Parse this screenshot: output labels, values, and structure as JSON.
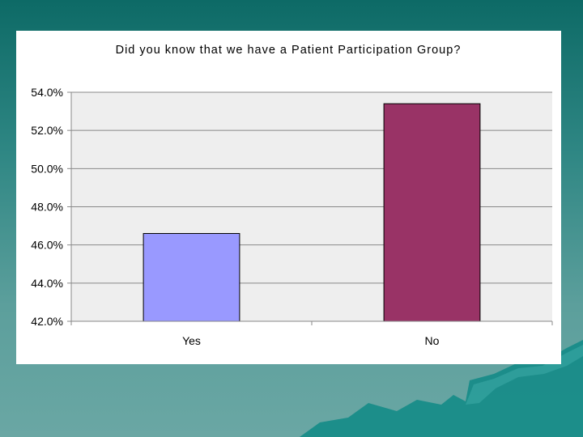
{
  "chart_data": {
    "type": "bar",
    "title": "Did you know that we have a Patient Participation Group?",
    "categories": [
      "Yes",
      "No"
    ],
    "values": [
      46.6,
      53.4
    ],
    "ylim": [
      42.0,
      54.0
    ],
    "yticks": [
      42.0,
      44.0,
      46.0,
      48.0,
      50.0,
      52.0,
      54.0
    ],
    "ytick_format": "0.0%",
    "bar_colors": [
      "#9999ff",
      "#993366"
    ],
    "grid": true,
    "legend": "none",
    "plot_background": "#eeeeee",
    "xlabel": "",
    "ylabel": ""
  },
  "colors": {
    "slide_background": "#2f8784",
    "wave_decoration": "#0f8a86"
  }
}
